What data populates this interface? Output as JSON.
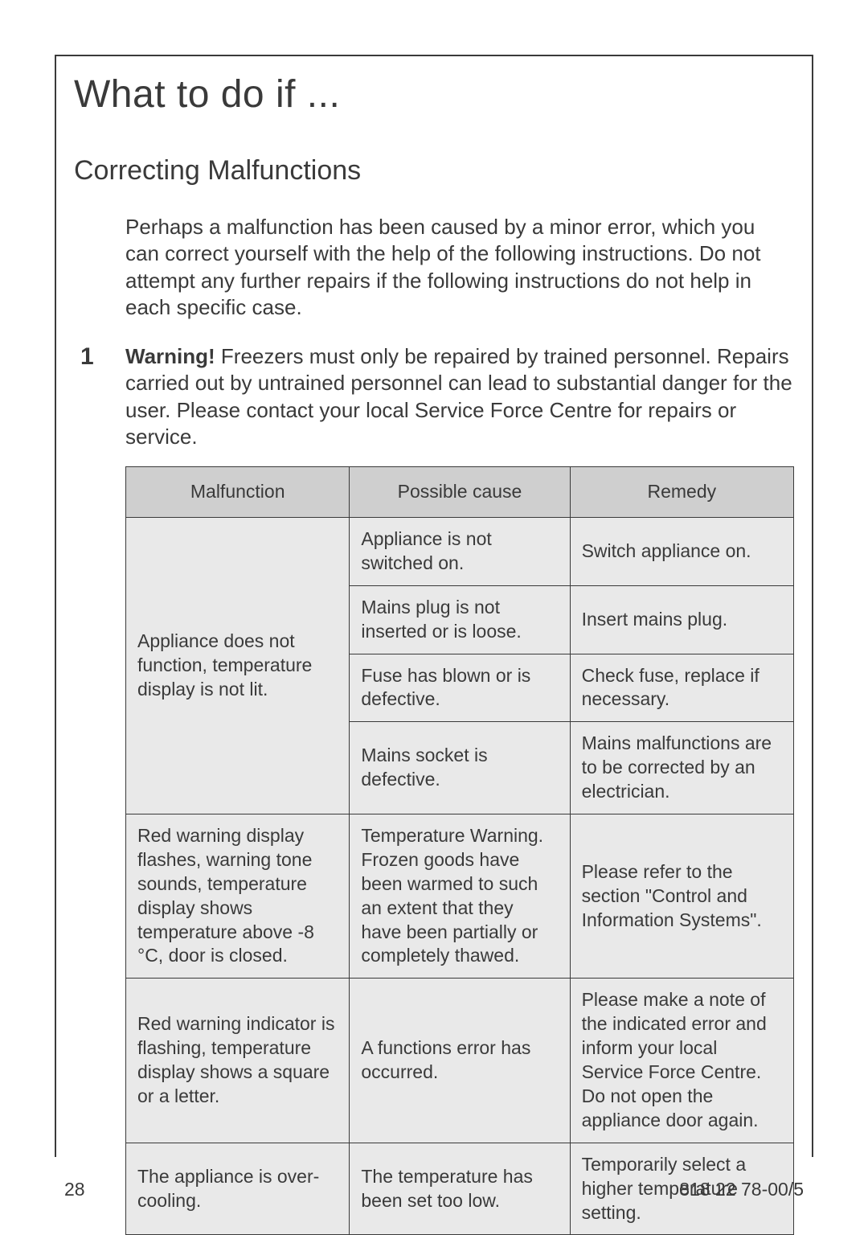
{
  "title": "What to do if ...",
  "subtitle": "Correcting Malfunctions",
  "intro": "Perhaps a malfunction has been caused by a minor error, which you can correct yourself with the help of the following instructions. Do not attempt any further repairs if the following instructions do not help in each specific case.",
  "warning": {
    "marker": "1",
    "bold": "Warning!",
    "text": " Freezers must only be repaired by trained personnel. Repairs carried out by untrained personnel can lead to substantial danger for the user. Please contact your local Service Force Centre for repairs or service."
  },
  "table": {
    "headers": [
      "Malfunction",
      "Possible cause",
      "Remedy"
    ],
    "header_bg": "#cfcfcf",
    "cell_bg": "#e9e9e9",
    "border_color": "#3a3a3a",
    "fontsize": 23,
    "col_widths_pct": [
      33.5,
      33,
      33.5
    ],
    "groups": [
      {
        "malfunction": "Appliance does not function, temperature display is not lit.",
        "rows": [
          {
            "cause": "Appliance is not switched on.",
            "remedy": "Switch appliance on."
          },
          {
            "cause": "Mains plug is not inserted or is loose.",
            "remedy": "Insert mains plug."
          },
          {
            "cause": "Fuse has blown or is defective.",
            "remedy": "Check fuse, replace if necessary."
          },
          {
            "cause": "Mains socket is defective.",
            "remedy": "Mains malfunctions are to be corrected by an electrician."
          }
        ]
      },
      {
        "malfunction": "Red warning display flashes, warning tone sounds, temperature display shows temperature above -8 °C, door is closed.",
        "rows": [
          {
            "cause": "Temperature Warning. Frozen goods have been warmed to such an extent that they have been partially or completely thawed.",
            "remedy": "Please refer to the section \"Control and Information Systems\"."
          }
        ]
      },
      {
        "malfunction": "Red warning indicator is flashing, temperature display shows a square or a letter.",
        "rows": [
          {
            "cause": "A functions error has occurred.",
            "remedy": "Please make a note of the indicated error and inform your local Service Force Centre. Do not open the appliance door again."
          }
        ]
      },
      {
        "malfunction": "The appliance is over-cooling.",
        "rows": [
          {
            "cause": "The temperature has been set too low.",
            "remedy": "Temporarily select a higher temperature setting."
          }
        ]
      }
    ]
  },
  "page_number": "28",
  "doc_number": "818 22 78-00/5",
  "colors": {
    "text": "#3a3a3a",
    "background": "#ffffff"
  },
  "typography": {
    "title_fontsize": 48,
    "subtitle_fontsize": 34,
    "body_fontsize": 26,
    "footer_fontsize": 23
  }
}
